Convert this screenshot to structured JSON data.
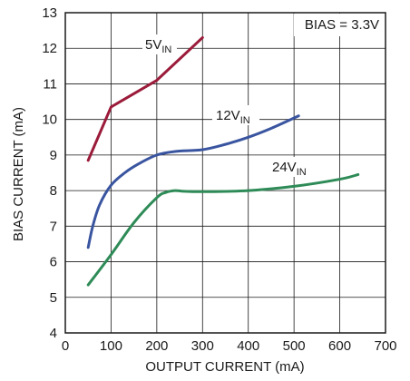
{
  "chart_data": {
    "type": "line",
    "xlabel": "OUTPUT CURRENT (mA)",
    "ylabel": "BIAS CURRENT (mA)",
    "xlim": [
      0,
      700
    ],
    "ylim": [
      4,
      13
    ],
    "xticks": [
      "0",
      "100",
      "200",
      "300",
      "400",
      "500",
      "600",
      "700"
    ],
    "yticks": [
      "4",
      "5",
      "6",
      "7",
      "8",
      "9",
      "10",
      "11",
      "12",
      "13"
    ],
    "grid": true,
    "annotation": "BIAS = 3.3V",
    "series": [
      {
        "label_main": "5V",
        "label_sub": "IN",
        "color": "#9b1b3a",
        "x": [
          50,
          100,
          200,
          300
        ],
        "y": [
          8.85,
          10.35,
          11.1,
          12.3
        ]
      },
      {
        "label_main": "12V",
        "label_sub": "IN",
        "color": "#3a55a0",
        "x": [
          50,
          60,
          75,
          100,
          130,
          160,
          200,
          240,
          300,
          350,
          400,
          450,
          510
        ],
        "y": [
          6.4,
          7.0,
          7.6,
          8.15,
          8.5,
          8.75,
          9.0,
          9.1,
          9.15,
          9.3,
          9.5,
          9.75,
          10.1
        ]
      },
      {
        "label_main": "24V",
        "label_sub": "IN",
        "color": "#2e8b57",
        "x": [
          50,
          100,
          150,
          200,
          220,
          240,
          260,
          300,
          400,
          500,
          600,
          640
        ],
        "y": [
          5.35,
          6.2,
          7.1,
          7.8,
          7.95,
          8.0,
          7.98,
          7.97,
          8.0,
          8.12,
          8.32,
          8.45
        ]
      }
    ]
  }
}
